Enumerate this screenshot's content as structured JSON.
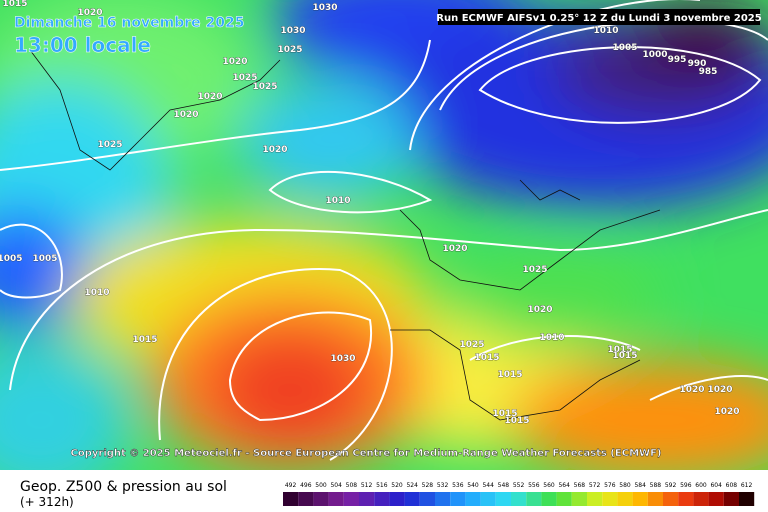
{
  "header": {
    "date": "Dimanche 16 novembre 2025",
    "time": "13:00 locale",
    "run": "Run ECMWF AIFSv1 0.25° 12 Z du Lundi 3 novembre 2025"
  },
  "copyright": "Copyright © 2025 Meteociel.fr - Source European Centre for Medium-Range Weather Forecasts (ECMWF)",
  "footer": {
    "title": "Geop. Z500 & pression au sol",
    "lead": "(+ 312h)"
  },
  "isobar_labels": [
    "1015",
    "1020",
    "1030",
    "1030",
    "1025",
    "1020",
    "1025",
    "1025",
    "1020",
    "1020",
    "1025",
    "1020",
    "1010",
    "1020",
    "1025",
    "1005",
    "1005",
    "1010",
    "1015",
    "1030",
    "1025",
    "1015",
    "1020",
    "1010",
    "1015",
    "1015",
    "1015",
    "1020",
    "1020",
    "1020",
    "1015",
    "1015",
    "1010",
    "1005",
    "1000",
    "995",
    "990",
    "985"
  ],
  "legend": [
    492,
    496,
    500,
    504,
    508,
    512,
    516,
    520,
    524,
    528,
    532,
    536,
    540,
    544,
    548,
    552,
    556,
    560,
    564,
    568,
    572,
    576,
    580,
    584,
    588,
    592,
    596,
    600,
    604,
    608,
    612
  ]
}
